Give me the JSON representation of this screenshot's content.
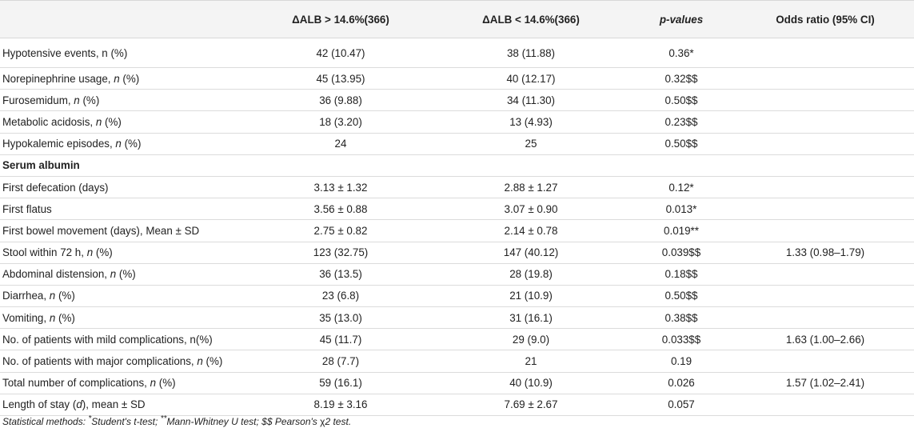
{
  "table": {
    "headers": {
      "col1": "",
      "col2": "ΔALB > 14.6%(366)",
      "col3": "ΔALB < 14.6%(366)",
      "col4": "p-values",
      "col5": "Odds ratio (95% CI)"
    },
    "rows": [
      {
        "label_pre": "Hypotensive events, n (%)",
        "label_it": "",
        "label_post": "",
        "a": "42 (10.47)",
        "b": "38 (11.88)",
        "p": "0.36*",
        "or": ""
      },
      {
        "label_pre": "Norepinephrine usage, ",
        "label_it": "n",
        "label_post": " (%)",
        "a": "45 (13.95)",
        "b": "40 (12.17)",
        "p": "0.32$$",
        "or": ""
      },
      {
        "label_pre": "Furosemidum, ",
        "label_it": "n",
        "label_post": " (%)",
        "a": "36 (9.88)",
        "b": "34 (11.30)",
        "p": "0.50$$",
        "or": ""
      },
      {
        "label_pre": "Metabolic acidosis, ",
        "label_it": "n",
        "label_post": " (%)",
        "a": "18 (3.20)",
        "b": "13 (4.93)",
        "p": "0.23$$",
        "or": ""
      },
      {
        "label_pre": "Hypokalemic episodes, ",
        "label_it": "n",
        "label_post": " (%)",
        "a": "24",
        "b": "25",
        "p": "0.50$$",
        "or": ""
      },
      {
        "section": "Serum albumin"
      },
      {
        "label_pre": "First defecation (days)",
        "label_it": "",
        "label_post": "",
        "a": "3.13 ± 1.32",
        "b": "2.88 ± 1.27",
        "p": "0.12*",
        "or": ""
      },
      {
        "label_pre": "First flatus",
        "label_it": "",
        "label_post": "",
        "a": "3.56 ± 0.88",
        "b": "3.07 ± 0.90",
        "p": "0.013*",
        "or": ""
      },
      {
        "label_pre": "First bowel movement (days), Mean ± SD",
        "label_it": "",
        "label_post": "",
        "a": "2.75 ± 0.82",
        "b": "2.14 ± 0.78",
        "p": "0.019**",
        "or": ""
      },
      {
        "label_pre": "Stool within 72 h, ",
        "label_it": "n",
        "label_post": " (%)",
        "a": "123 (32.75)",
        "b": "147 (40.12)",
        "p": "0.039$$",
        "or": "1.33 (0.98–1.79)"
      },
      {
        "label_pre": "Abdominal distension, ",
        "label_it": "n",
        "label_post": " (%)",
        "a": "36 (13.5)",
        "b": "28 (19.8)",
        "p": "0.18$$",
        "or": ""
      },
      {
        "label_pre": "Diarrhea, ",
        "label_it": "n",
        "label_post": " (%)",
        "a": "23 (6.8)",
        "b": "21 (10.9)",
        "p": "0.50$$",
        "or": ""
      },
      {
        "label_pre": "Vomiting, ",
        "label_it": "n",
        "label_post": " (%)",
        "a": "35 (13.0)",
        "b": "31 (16.1)",
        "p": "0.38$$",
        "or": ""
      },
      {
        "label_pre": "No. of patients with mild complications, n(%)",
        "label_it": "",
        "label_post": "",
        "a": "45 (11.7)",
        "b": "29 (9.0)",
        "p": "0.033$$",
        "or": "1.63 (1.00–2.66)"
      },
      {
        "label_pre": "No. of patients with major complications, ",
        "label_it": "n",
        "label_post": " (%)",
        "a": "28 (7.7)",
        "b": "21",
        "p": "0.19",
        "or": ""
      },
      {
        "label_pre": "Total number of complications, ",
        "label_it": "n",
        "label_post": " (%)",
        "a": "59 (16.1)",
        "b": "40 (10.9)",
        "p": "0.026",
        "or": "1.57 (1.02–2.41)"
      },
      {
        "label_pre": "Length of stay (",
        "label_it": "d",
        "label_post": "), mean ± SD",
        "a": "8.19 ± 3.16",
        "b": "7.69 ± 2.67",
        "p": "0.057",
        "or": ""
      }
    ]
  },
  "footnote": {
    "text1": "Statistical methods: ",
    "sup1": "*",
    "text2": "Student's t-test; ",
    "sup2": "**",
    "text3": "Mann-Whitney U test; $$ Pearson's ",
    "chi": "χ",
    "text4": "2 test."
  }
}
